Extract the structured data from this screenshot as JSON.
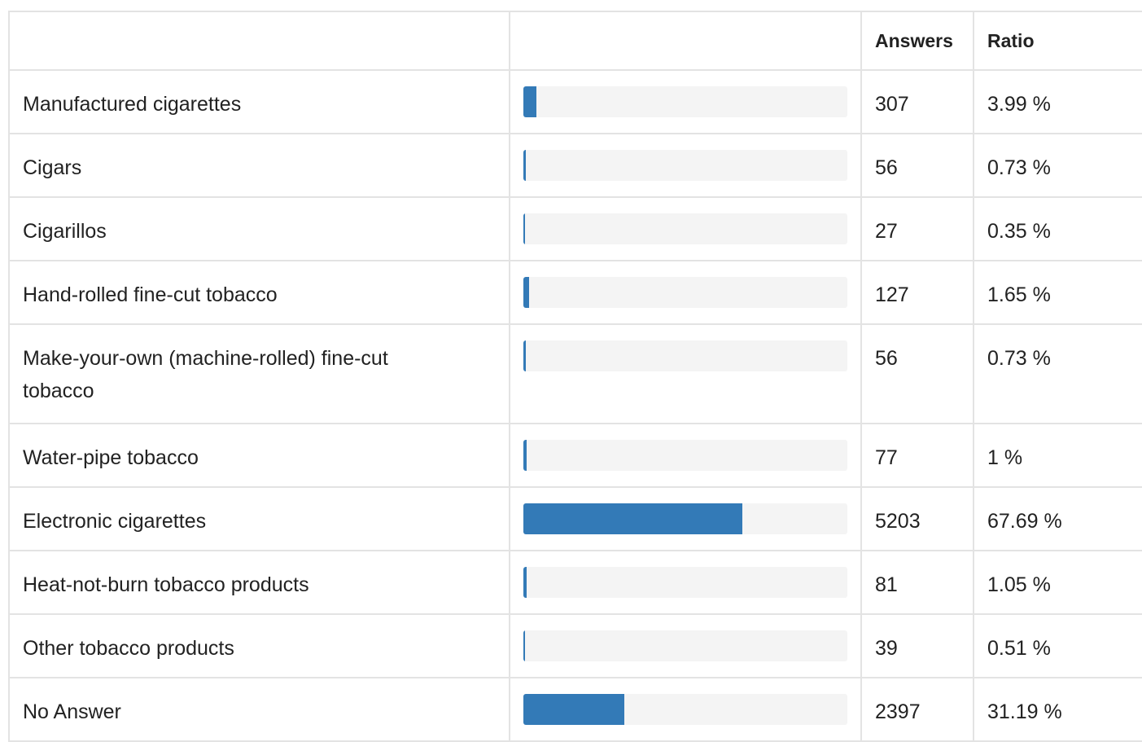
{
  "header": {
    "answers_label": "Answers",
    "ratio_label": "Ratio"
  },
  "colors": {
    "bar_fill": "#337ab7",
    "bar_track": "#f4f4f4",
    "border": "#e3e3e3"
  },
  "rows": [
    {
      "label": "Manufactured cigarettes",
      "answers": "307",
      "ratio": "3.99 %",
      "fraction": 0.0399
    },
    {
      "label": "Cigars",
      "answers": "56",
      "ratio": "0.73 %",
      "fraction": 0.0073
    },
    {
      "label": "Cigarillos",
      "answers": "27",
      "ratio": "0.35 %",
      "fraction": 0.0035
    },
    {
      "label": "Hand-rolled fine-cut tobacco",
      "answers": "127",
      "ratio": "1.65 %",
      "fraction": 0.0165
    },
    {
      "label": "Make-your-own (machine-rolled) fine-cut tobacco",
      "answers": "56",
      "ratio": "0.73 %",
      "fraction": 0.0073
    },
    {
      "label": "Water-pipe tobacco",
      "answers": "77",
      "ratio": "1 %",
      "fraction": 0.01
    },
    {
      "label": "Electronic cigarettes",
      "answers": "5203",
      "ratio": "67.69 %",
      "fraction": 0.6769
    },
    {
      "label": "Heat-not-burn tobacco products",
      "answers": "81",
      "ratio": "1.05 %",
      "fraction": 0.0105
    },
    {
      "label": "Other tobacco products",
      "answers": "39",
      "ratio": "0.51 %",
      "fraction": 0.0051
    },
    {
      "label": "No Answer",
      "answers": "2397",
      "ratio": "31.19 %",
      "fraction": 0.3119
    }
  ]
}
